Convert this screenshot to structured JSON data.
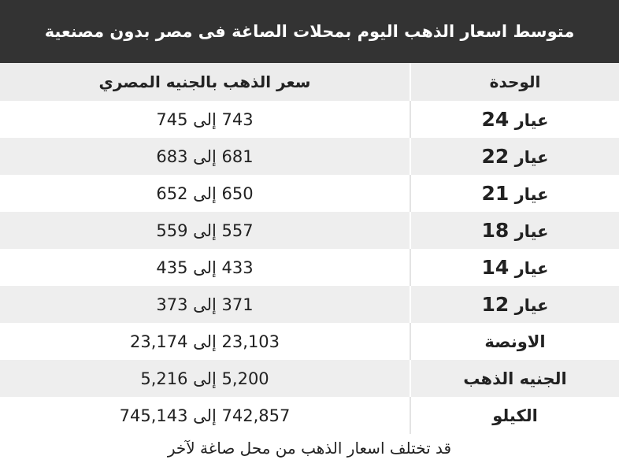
{
  "title": "متوسط اسعار الذهب اليوم بمحلات الصاغة فى مصر بدون مصنعية",
  "table": {
    "headers": {
      "unit": "الوحدة",
      "price": "سعر الذهب بالجنيه المصري"
    },
    "rows": [
      {
        "unit_word": "عيار",
        "unit_num": "24",
        "price": "743 إلى 745"
      },
      {
        "unit_word": "عيار",
        "unit_num": "22",
        "price": "681 إلى 683"
      },
      {
        "unit_word": "عيار",
        "unit_num": "21",
        "price": "650 إلى 652"
      },
      {
        "unit_word": "عيار",
        "unit_num": "18",
        "price": "557 إلى 559"
      },
      {
        "unit_word": "عيار",
        "unit_num": "14",
        "price": "433 إلى 435"
      },
      {
        "unit_word": "عيار",
        "unit_num": "12",
        "price": "371 إلى 373"
      },
      {
        "unit_word": "الاونصة",
        "unit_num": "",
        "price": "23,103 إلى 23,174"
      },
      {
        "unit_word": "الجنيه الذهب",
        "unit_num": "",
        "price": "5,200 إلى 5,216"
      },
      {
        "unit_word": "الكيلو",
        "unit_num": "",
        "price": "742,857 إلى 745,143"
      }
    ]
  },
  "footnote": "قد تختلف اسعار الذهب من محل صاغة لآخر",
  "colors": {
    "title_bg": "#333333",
    "header_bg": "#ececec",
    "stripe_bg": "#eeeeee"
  }
}
